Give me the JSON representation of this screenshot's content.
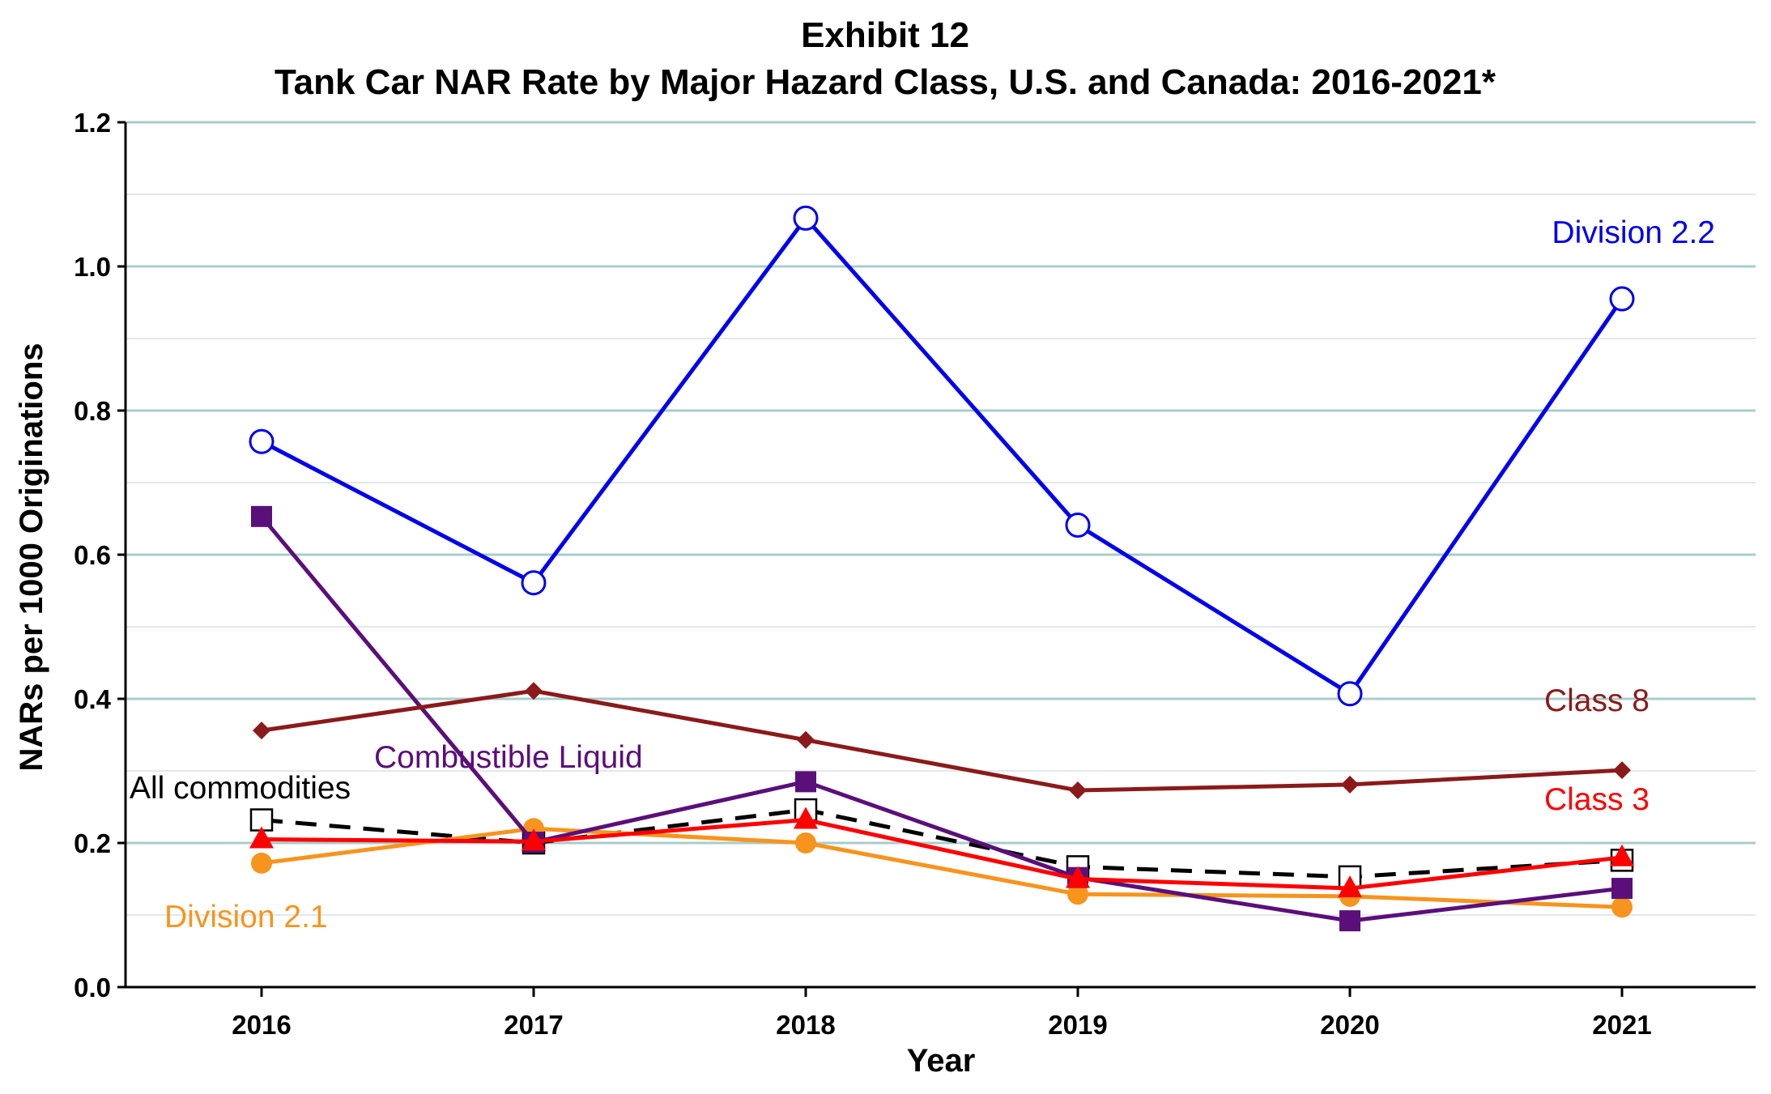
{
  "chart_data": {
    "type": "line",
    "title": "Exhibit 12",
    "subtitle": "Tank Car NAR Rate by Major Hazard Class, U.S. and Canada: 2016-2021*",
    "xlabel": "Year",
    "ylabel": "NARs per 1000 Originations",
    "x": [
      "2016",
      "2017",
      "2018",
      "2019",
      "2020",
      "2021"
    ],
    "ylim": [
      0,
      1.2
    ],
    "yticks": [
      "0.0",
      "0.2",
      "0.4",
      "0.6",
      "0.8",
      "1.0",
      "1.2"
    ],
    "grid": "horizontal",
    "legend": "direct labels",
    "series": [
      {
        "name": "Division 2.2",
        "color": "#0000ee",
        "marker": "open-circle",
        "dash": false,
        "values": [
          0.757,
          0.561,
          1.067,
          0.641,
          0.407,
          0.955
        ]
      },
      {
        "name": "Combustible Liquid",
        "color": "#5b0f7a",
        "marker": "square",
        "dash": false,
        "values": [
          0.653,
          0.201,
          0.285,
          0.152,
          0.092,
          0.137
        ]
      },
      {
        "name": "Class 8",
        "color": "#8b1a1a",
        "marker": "diamond",
        "dash": false,
        "values": [
          0.356,
          0.411,
          0.343,
          0.273,
          0.281,
          0.301
        ]
      },
      {
        "name": "Class 3",
        "color": "#ff0000",
        "marker": "triangle",
        "dash": false,
        "values": [
          0.205,
          0.202,
          0.232,
          0.15,
          0.137,
          0.18
        ]
      },
      {
        "name": "Division 2.1",
        "color": "#f7941d",
        "marker": "circle",
        "dash": false,
        "values": [
          0.172,
          0.22,
          0.2,
          0.129,
          0.126,
          0.111
        ]
      },
      {
        "name": "All commodities",
        "color": "#000000",
        "marker": "open-square",
        "dash": true,
        "values": [
          0.232,
          0.2,
          0.246,
          0.167,
          0.153,
          0.176
        ]
      }
    ]
  }
}
